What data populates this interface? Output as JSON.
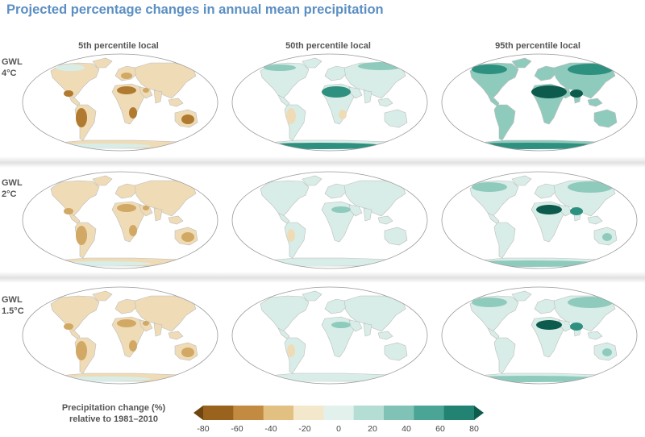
{
  "title": "Projected percentage changes in annual mean precipitation",
  "columns": [
    {
      "label": "5th percentile local"
    },
    {
      "label": "50th percentile local"
    },
    {
      "label": "95th percentile local"
    }
  ],
  "rows": [
    {
      "label_line1": "GWL",
      "label_line2": "4°C"
    },
    {
      "label_line1": "GWL",
      "label_line2": "2°C"
    },
    {
      "label_line1": "GWL",
      "label_line2": "1.5°C"
    }
  ],
  "legend": {
    "title_line1": "Precipitation change (%)",
    "title_line2": "relative to 1981–2010",
    "ticks": [
      "-80",
      "-60",
      "-40",
      "-20",
      "0",
      "20",
      "40",
      "60",
      "80"
    ],
    "colors": [
      "#6e4510",
      "#99621d",
      "#c28b41",
      "#e2c081",
      "#f3e8cc",
      "#e3f1ec",
      "#b4ddd3",
      "#80c3b6",
      "#4aa597",
      "#228372",
      "#0c5b4c"
    ]
  },
  "map_colors": {
    "dry_strong": "#b07a30",
    "dry_medium": "#d1a864",
    "dry_light": "#efdcb6",
    "wet_light": "#d8ede7",
    "wet_medium": "#8fcbbd",
    "wet_strong": "#2e907f",
    "wet_extreme": "#0c5b4c",
    "ocean": "#ffffff",
    "outline": "#bcbcbc"
  }
}
